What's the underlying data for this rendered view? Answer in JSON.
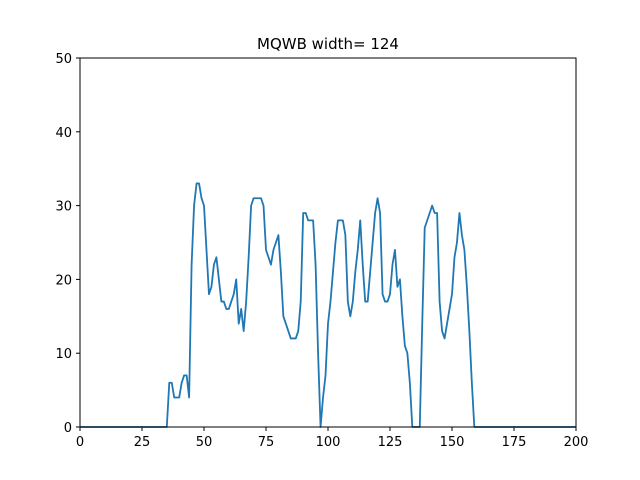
{
  "chart_data": {
    "type": "line",
    "title": "MQWB width= 124",
    "xlabel": "",
    "ylabel": "",
    "xlim": [
      0,
      200
    ],
    "ylim": [
      0,
      50
    ],
    "x_ticks": [
      0,
      25,
      50,
      75,
      100,
      125,
      150,
      175,
      200
    ],
    "y_ticks": [
      0,
      10,
      20,
      30,
      40,
      50
    ],
    "grid": false,
    "legend": "none",
    "series": [
      {
        "color": "#1f77b4",
        "points": [
          [
            0,
            0
          ],
          [
            35,
            0
          ],
          [
            36,
            6
          ],
          [
            37,
            6
          ],
          [
            38,
            4
          ],
          [
            39,
            4
          ],
          [
            40,
            4
          ],
          [
            41,
            6
          ],
          [
            42,
            7
          ],
          [
            43,
            7
          ],
          [
            44,
            4
          ],
          [
            45,
            22
          ],
          [
            46,
            30
          ],
          [
            47,
            33
          ],
          [
            48,
            33
          ],
          [
            49,
            31
          ],
          [
            50,
            30
          ],
          [
            51,
            24
          ],
          [
            52,
            18
          ],
          [
            53,
            19
          ],
          [
            54,
            22
          ],
          [
            55,
            23
          ],
          [
            56,
            20
          ],
          [
            57,
            17
          ],
          [
            58,
            17
          ],
          [
            59,
            16
          ],
          [
            60,
            16
          ],
          [
            61,
            17
          ],
          [
            62,
            18
          ],
          [
            63,
            20
          ],
          [
            64,
            14
          ],
          [
            65,
            16
          ],
          [
            66,
            13
          ],
          [
            67,
            17
          ],
          [
            68,
            23
          ],
          [
            69,
            30
          ],
          [
            70,
            31
          ],
          [
            71,
            31
          ],
          [
            72,
            31
          ],
          [
            73,
            31
          ],
          [
            74,
            30
          ],
          [
            75,
            24
          ],
          [
            76,
            23
          ],
          [
            77,
            22
          ],
          [
            78,
            24
          ],
          [
            79,
            25
          ],
          [
            80,
            26
          ],
          [
            81,
            21
          ],
          [
            82,
            15
          ],
          [
            83,
            14
          ],
          [
            84,
            13
          ],
          [
            85,
            12
          ],
          [
            86,
            12
          ],
          [
            87,
            12
          ],
          [
            88,
            13
          ],
          [
            89,
            17
          ],
          [
            90,
            29
          ],
          [
            91,
            29
          ],
          [
            92,
            28
          ],
          [
            93,
            28
          ],
          [
            94,
            28
          ],
          [
            95,
            22
          ],
          [
            96,
            10
          ],
          [
            97,
            0
          ],
          [
            98,
            4
          ],
          [
            99,
            7
          ],
          [
            100,
            14
          ],
          [
            101,
            17
          ],
          [
            102,
            21
          ],
          [
            103,
            25
          ],
          [
            104,
            28
          ],
          [
            105,
            28
          ],
          [
            106,
            28
          ],
          [
            107,
            26
          ],
          [
            108,
            17
          ],
          [
            109,
            15
          ],
          [
            110,
            17
          ],
          [
            111,
            21
          ],
          [
            112,
            24
          ],
          [
            113,
            28
          ],
          [
            114,
            22
          ],
          [
            115,
            17
          ],
          [
            116,
            17
          ],
          [
            117,
            21
          ],
          [
            118,
            25
          ],
          [
            119,
            29
          ],
          [
            120,
            31
          ],
          [
            121,
            29
          ],
          [
            122,
            18
          ],
          [
            123,
            17
          ],
          [
            124,
            17
          ],
          [
            125,
            18
          ],
          [
            126,
            22
          ],
          [
            127,
            24
          ],
          [
            128,
            19
          ],
          [
            129,
            20
          ],
          [
            130,
            15
          ],
          [
            131,
            11
          ],
          [
            132,
            10
          ],
          [
            133,
            6
          ],
          [
            134,
            0
          ],
          [
            137,
            0
          ],
          [
            138,
            14
          ],
          [
            139,
            27
          ],
          [
            140,
            28
          ],
          [
            141,
            29
          ],
          [
            142,
            30
          ],
          [
            143,
            29
          ],
          [
            144,
            29
          ],
          [
            145,
            17
          ],
          [
            146,
            13
          ],
          [
            147,
            12
          ],
          [
            148,
            14
          ],
          [
            149,
            16
          ],
          [
            150,
            18
          ],
          [
            151,
            23
          ],
          [
            152,
            25
          ],
          [
            153,
            29
          ],
          [
            154,
            26
          ],
          [
            155,
            24
          ],
          [
            156,
            19
          ],
          [
            157,
            13
          ],
          [
            158,
            6
          ],
          [
            159,
            0
          ],
          [
            200,
            0
          ]
        ]
      }
    ]
  }
}
